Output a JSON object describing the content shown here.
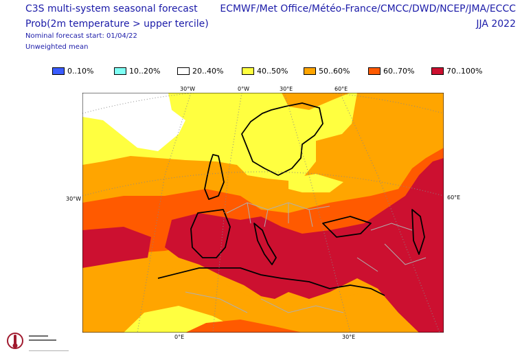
{
  "header": {
    "title": "C3S multi-system seasonal forecast",
    "subtitle": "Prob(2m temperature > upper tercile)",
    "forecast_start": "Nominal forecast start: 01/04/22",
    "mean_type": "Unweighted mean",
    "systems": "ECMWF/Met Office/Météo-France/CMCC/DWD/NCEP/JMA/ECCC",
    "season": "JJA 2022"
  },
  "legend": [
    {
      "label": "0..10%",
      "color": "#3a5cff"
    },
    {
      "label": "10..20%",
      "color": "#7ffff4"
    },
    {
      "label": "20..40%",
      "color": "#ffffff"
    },
    {
      "label": "40..50%",
      "color": "#ffff40"
    },
    {
      "label": "50..60%",
      "color": "#ffa500"
    },
    {
      "label": "60..70%",
      "color": "#ff5a00"
    },
    {
      "label": "70..100%",
      "color": "#cc1030"
    }
  ],
  "axes": {
    "top": [
      "30°W",
      "0°W",
      "30°E",
      "60°E"
    ],
    "left": "30°W",
    "right": "60°E",
    "bottom": [
      "0°E",
      "30°E"
    ]
  },
  "logo": {
    "name": "Climate Change Service",
    "icon": "climate-change-logo"
  }
}
